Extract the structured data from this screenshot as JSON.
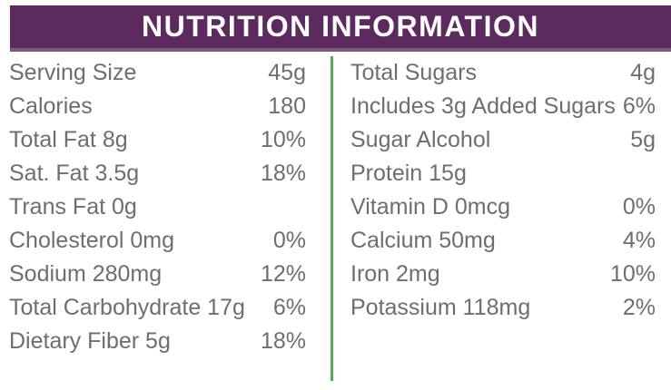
{
  "header": {
    "title": "NUTRITION INFORMATION"
  },
  "colors": {
    "page_bg": "#ffffff",
    "header_bg": "#5d2a60",
    "header_border": "#7a5a7d",
    "header_text": "#ffffff",
    "body_text": "#6d6e71",
    "divider_green": "#55ad58"
  },
  "columns": {
    "left": {
      "rows": [
        {
          "label": "Serving Size",
          "value": "45g"
        },
        {
          "label": "Calories",
          "value": "180"
        },
        {
          "label": "Total Fat 8g",
          "value": "10%"
        },
        {
          "label": "Sat. Fat 3.5g",
          "value": "18%"
        },
        {
          "label": "Trans Fat 0g",
          "value": ""
        },
        {
          "label": "Cholesterol 0mg",
          "value": "0%"
        },
        {
          "label": "Sodium 280mg",
          "value": "12%"
        },
        {
          "label": "Total Carbohydrate 17g",
          "value": "6%"
        },
        {
          "label": "Dietary Fiber 5g",
          "value": "18%"
        }
      ]
    },
    "right": {
      "rows": [
        {
          "label": "Total Sugars",
          "value": "4g"
        },
        {
          "label": "Includes 3g Added Sugars",
          "value": "6%"
        },
        {
          "label": "Sugar Alcohol",
          "value": "5g"
        },
        {
          "label": "Protein 15g",
          "value": ""
        },
        {
          "label": "Vitamin D 0mcg",
          "value": "0%"
        },
        {
          "label": "Calcium 50mg",
          "value": "4%"
        },
        {
          "label": "Iron 2mg",
          "value": "10%"
        },
        {
          "label": "Potassium 118mg",
          "value": "2%"
        }
      ]
    }
  }
}
